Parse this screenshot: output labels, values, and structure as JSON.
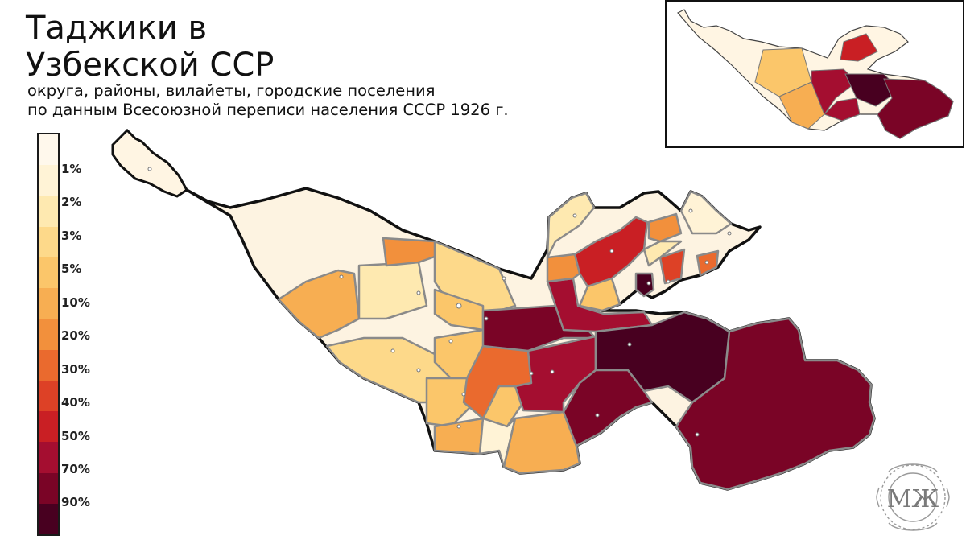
{
  "title_line1": "Таджики в",
  "title_line2": "Узбекской ССР",
  "subtitle_line1": "округа, районы, вилайеты, городские поселения",
  "subtitle_line2": "по данным Всесоюзной переписи населения СССР 1926 г.",
  "legend": {
    "bins": [
      {
        "color": "#fff8ec"
      },
      {
        "color": "#fff3d6",
        "label": "1%"
      },
      {
        "color": "#fee9b0",
        "label": "2%"
      },
      {
        "color": "#fdd98a",
        "label": "3%"
      },
      {
        "color": "#fbc66a",
        "label": "5%"
      },
      {
        "color": "#f7ae52",
        "label": "10%"
      },
      {
        "color": "#f2903c",
        "label": "20%"
      },
      {
        "color": "#ea6a2e",
        "label": "30%"
      },
      {
        "color": "#dd4126",
        "label": "40%"
      },
      {
        "color": "#c91f24",
        "label": "50%"
      },
      {
        "color": "#a40e30",
        "label": "70%"
      },
      {
        "color": "#7a0426",
        "label": "90%"
      },
      {
        "color": "#480020"
      }
    ]
  },
  "logo_text": "МЖ",
  "colors": {
    "border": "#111111",
    "district_border": "#8a8a8a"
  }
}
